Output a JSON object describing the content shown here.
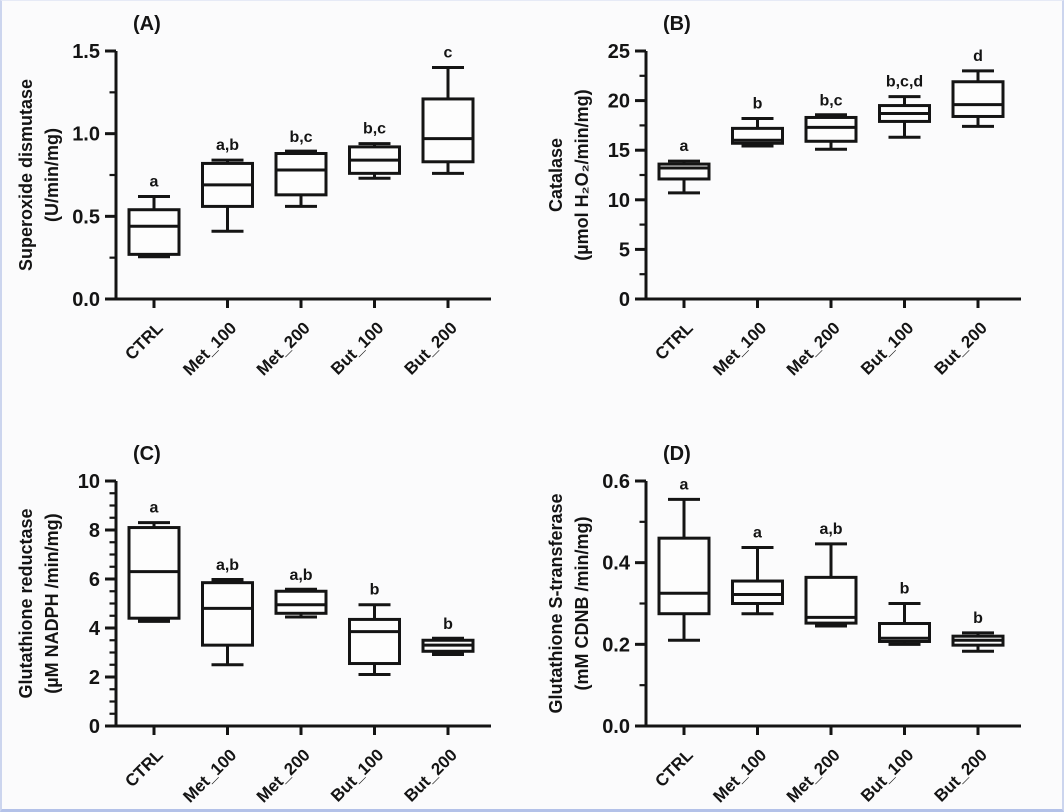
{
  "figure": {
    "background": "#fbfbfc",
    "ink": "#141414",
    "box_fill": "#fdfdfd",
    "edge_border": "#b3c1e8"
  },
  "chart_data": [
    {
      "type": "box",
      "panel_label": "(A)",
      "ylabel_lines": [
        "Superoxide dismutase",
        "(U/min/mg)"
      ],
      "ylim": [
        0,
        1.5
      ],
      "yticks": [
        0,
        0.5,
        1,
        1.5
      ],
      "ytick_labels": [
        "0.0",
        "0.5",
        "1.0",
        "1.5"
      ],
      "minor_tick_step": 0.25,
      "grid": false,
      "categories": [
        "CTRL",
        "Met_100",
        "Met_200",
        "But_100",
        "But_200"
      ],
      "boxes": [
        {
          "category": "CTRL",
          "whisker_low": 0.26,
          "q1": 0.27,
          "median": 0.44,
          "q3": 0.54,
          "whisker_high": 0.62,
          "letter": "a"
        },
        {
          "category": "Met_100",
          "whisker_low": 0.41,
          "q1": 0.56,
          "median": 0.69,
          "q3": 0.82,
          "whisker_high": 0.84,
          "letter": "a,b"
        },
        {
          "category": "Met_200",
          "whisker_low": 0.56,
          "q1": 0.63,
          "median": 0.78,
          "q3": 0.88,
          "whisker_high": 0.89,
          "letter": "b,c"
        },
        {
          "category": "But_100",
          "whisker_low": 0.73,
          "q1": 0.76,
          "median": 0.84,
          "q3": 0.92,
          "whisker_high": 0.94,
          "letter": "b,c"
        },
        {
          "category": "But_200",
          "whisker_low": 0.76,
          "q1": 0.83,
          "median": 0.97,
          "q3": 1.21,
          "whisker_high": 1.4,
          "letter": "c"
        }
      ]
    },
    {
      "type": "box",
      "panel_label": "(B)",
      "ylabel_lines": [
        "Catalase",
        "(µmol H₂O₂/min/mg)"
      ],
      "ylim": [
        0,
        25
      ],
      "yticks": [
        0,
        5,
        10,
        15,
        20,
        25
      ],
      "ytick_labels": [
        "0",
        "5",
        "10",
        "15",
        "20",
        "25"
      ],
      "minor_tick_step": 2.5,
      "grid": false,
      "categories": [
        "CTRL",
        "Met_100",
        "Met_200",
        "But_100",
        "But_200"
      ],
      "boxes": [
        {
          "category": "CTRL",
          "whisker_low": 10.7,
          "q1": 12.1,
          "median": 13.2,
          "q3": 13.6,
          "whisker_high": 13.9,
          "letter": "a"
        },
        {
          "category": "Met_100",
          "whisker_low": 15.5,
          "q1": 15.7,
          "median": 16.0,
          "q3": 17.2,
          "whisker_high": 18.2,
          "letter": "b"
        },
        {
          "category": "Met_200",
          "whisker_low": 15.1,
          "q1": 15.9,
          "median": 17.3,
          "q3": 18.3,
          "whisker_high": 18.5,
          "letter": "b,c"
        },
        {
          "category": "But_100",
          "whisker_low": 16.3,
          "q1": 17.9,
          "median": 18.7,
          "q3": 19.5,
          "whisker_high": 20.4,
          "letter": "b,c,d"
        },
        {
          "category": "But_200",
          "whisker_low": 17.4,
          "q1": 18.4,
          "median": 19.6,
          "q3": 21.9,
          "whisker_high": 23.0,
          "letter": "d"
        }
      ]
    },
    {
      "type": "box",
      "panel_label": "(C)",
      "ylabel_lines": [
        "Glutathione reductase",
        "(µM NADPH /min/mg)"
      ],
      "ylim": [
        0,
        10
      ],
      "yticks": [
        0,
        2,
        4,
        6,
        8,
        10
      ],
      "ytick_labels": [
        "0",
        "2",
        "4",
        "6",
        "8",
        "10"
      ],
      "minor_tick_step": 0.5,
      "grid": false,
      "categories": [
        "CTRL",
        "Met_100",
        "Met_200",
        "But_100",
        "But_200"
      ],
      "boxes": [
        {
          "category": "CTRL",
          "whisker_low": 4.3,
          "q1": 4.4,
          "median": 6.3,
          "q3": 8.1,
          "whisker_high": 8.3,
          "letter": "a"
        },
        {
          "category": "Met_100",
          "whisker_low": 2.5,
          "q1": 3.3,
          "median": 4.8,
          "q3": 5.85,
          "whisker_high": 5.95,
          "letter": "a,b"
        },
        {
          "category": "Met_200",
          "whisker_low": 4.45,
          "q1": 4.6,
          "median": 4.95,
          "q3": 5.5,
          "whisker_high": 5.55,
          "letter": "a,b"
        },
        {
          "category": "But_100",
          "whisker_low": 2.1,
          "q1": 2.55,
          "median": 3.85,
          "q3": 4.35,
          "whisker_high": 4.95,
          "letter": "b"
        },
        {
          "category": "But_200",
          "whisker_low": 2.95,
          "q1": 3.05,
          "median": 3.3,
          "q3": 3.5,
          "whisker_high": 3.55,
          "letter": "b"
        }
      ]
    },
    {
      "type": "box",
      "panel_label": "(D)",
      "ylabel_lines": [
        "Glutathione S-transferase",
        "(mM CDNB /min/mg)"
      ],
      "ylim": [
        0,
        0.6
      ],
      "yticks": [
        0,
        0.2,
        0.4,
        0.6
      ],
      "ytick_labels": [
        "0.0",
        "0.2",
        "0.4",
        "0.6"
      ],
      "minor_tick_step": 0.1,
      "grid": false,
      "categories": [
        "CTRL",
        "Met_100",
        "Met_200",
        "But_100",
        "But_200"
      ],
      "boxes": [
        {
          "category": "CTRL",
          "whisker_low": 0.21,
          "q1": 0.275,
          "median": 0.325,
          "q3": 0.46,
          "whisker_high": 0.555,
          "letter": "a"
        },
        {
          "category": "Met_100",
          "whisker_low": 0.275,
          "q1": 0.3,
          "median": 0.322,
          "q3": 0.355,
          "whisker_high": 0.437,
          "letter": "a"
        },
        {
          "category": "Met_200",
          "whisker_low": 0.245,
          "q1": 0.252,
          "median": 0.266,
          "q3": 0.364,
          "whisker_high": 0.446,
          "letter": "a,b"
        },
        {
          "category": "But_100",
          "whisker_low": 0.2,
          "q1": 0.207,
          "median": 0.215,
          "q3": 0.251,
          "whisker_high": 0.3,
          "letter": "b"
        },
        {
          "category": "But_200",
          "whisker_low": 0.183,
          "q1": 0.198,
          "median": 0.21,
          "q3": 0.22,
          "whisker_high": 0.228,
          "letter": "b"
        }
      ]
    }
  ]
}
